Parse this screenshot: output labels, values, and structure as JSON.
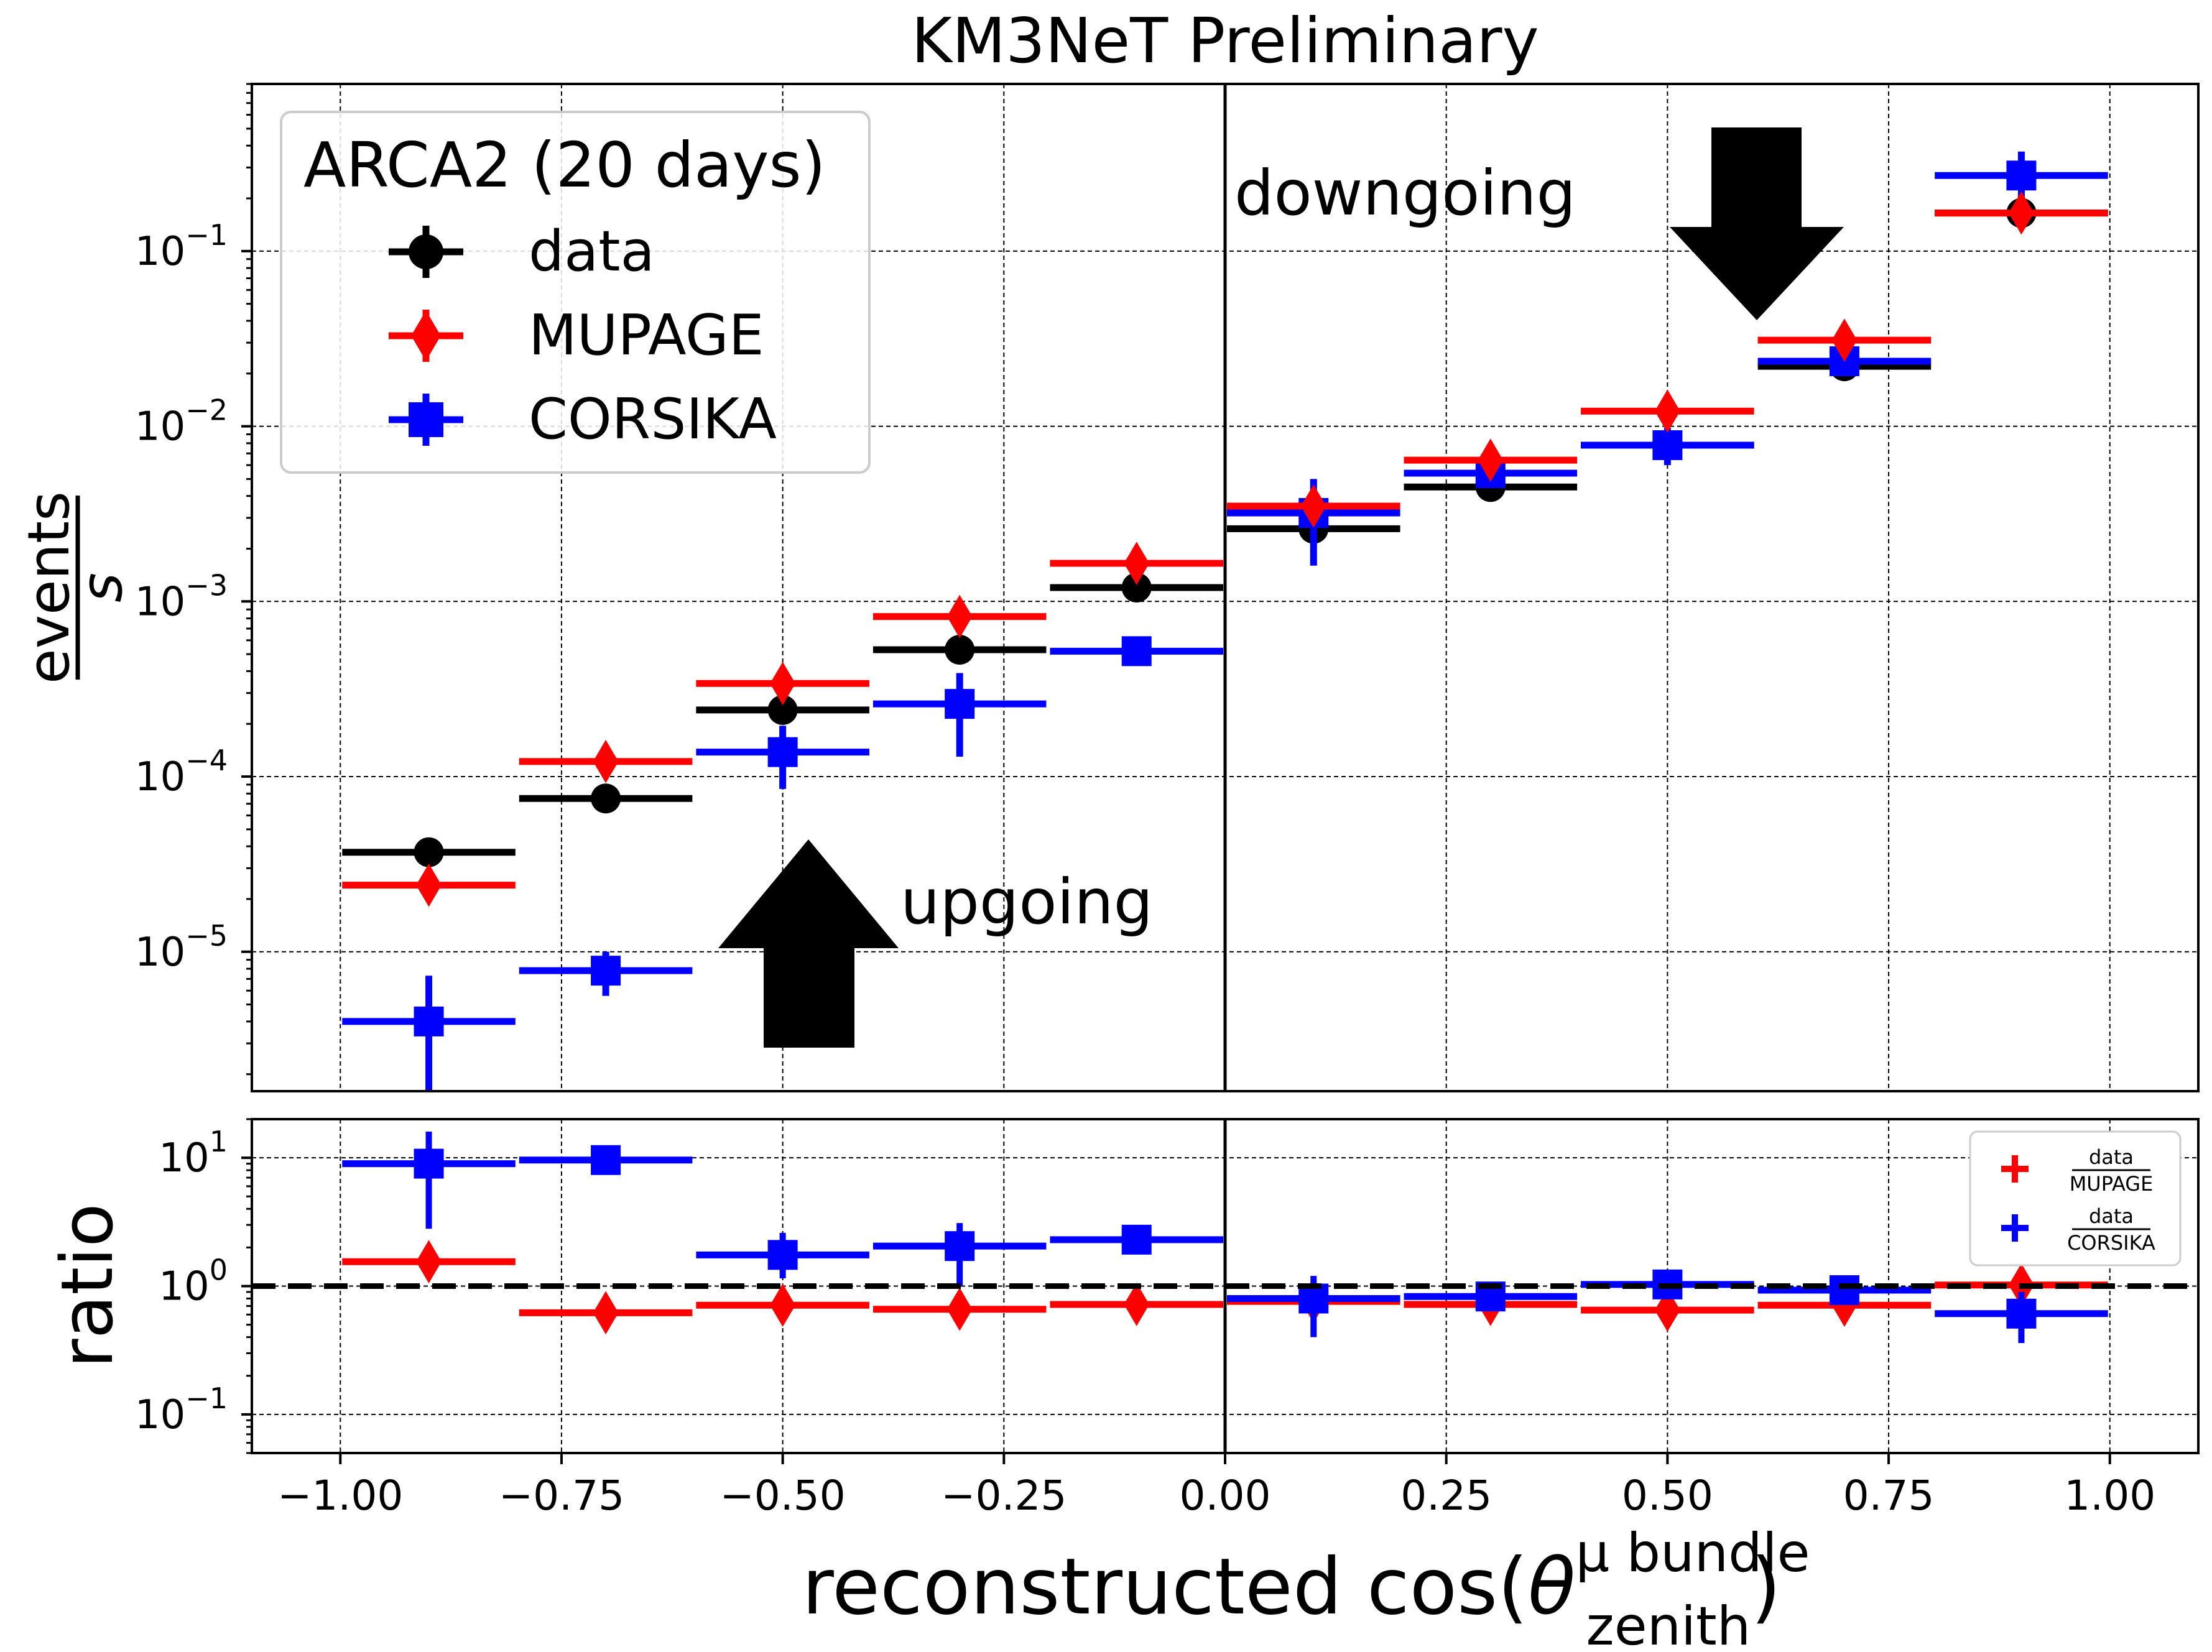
{
  "chart_data": [
    {
      "type": "scatter",
      "panel": "main",
      "title": "KM3NeT Preliminary",
      "xlabel": "reconstructed cos(θ zenith, μ bundle)",
      "ylabel_numerator": "events",
      "ylabel_denominator": "s",
      "xlim": [
        -1.1,
        1.1
      ],
      "ylim": [
        1.6e-06,
        0.9
      ],
      "yscale": "log",
      "grid": true,
      "bin_edges": [
        -1.0,
        -0.8,
        -0.6,
        -0.4,
        -0.2,
        0.0,
        0.2,
        0.4,
        0.6,
        0.8,
        1.0
      ],
      "x": [
        -0.9,
        -0.7,
        -0.5,
        -0.3,
        -0.1,
        0.1,
        0.3,
        0.5,
        0.7,
        0.9
      ],
      "y_ticks": [
        {
          "value": 1e-05,
          "base": "10",
          "exp": "−5"
        },
        {
          "value": 0.0001,
          "base": "10",
          "exp": "−4"
        },
        {
          "value": 0.001,
          "base": "10",
          "exp": "−3"
        },
        {
          "value": 0.01,
          "base": "10",
          "exp": "−2"
        },
        {
          "value": 0.1,
          "base": "10",
          "exp": "−1"
        }
      ],
      "legend": {
        "title": "ARCA2 (20 days)",
        "position": "upper-left",
        "entries": [
          "data",
          "MUPAGE",
          "CORSIKA"
        ]
      },
      "series": [
        {
          "name": "data",
          "color": "#000000",
          "marker": "circle",
          "values": [
            3.7e-05,
            7.5e-05,
            0.00024,
            0.00053,
            0.0012,
            0.0026,
            0.0045,
            0.0078,
            0.022,
            0.165
          ],
          "err_low": [
            3.7e-05,
            7.5e-05,
            0.00024,
            0.00053,
            0.0012,
            0.0026,
            0.0045,
            0.0078,
            0.022,
            0.165
          ],
          "err_high": [
            3.7e-05,
            7.5e-05,
            0.00024,
            0.00053,
            0.0012,
            0.0026,
            0.0045,
            0.0078,
            0.022,
            0.165
          ]
        },
        {
          "name": "MUPAGE",
          "color": "#ff0000",
          "marker": "diamond",
          "values": [
            2.4e-05,
            0.000122,
            0.00034,
            0.00082,
            0.00165,
            0.0035,
            0.0064,
            0.0122,
            0.031,
            0.165
          ],
          "err_low": [
            2.4e-05,
            0.000122,
            0.00034,
            0.00082,
            0.00165,
            0.0035,
            0.0064,
            0.0122,
            0.031,
            0.165
          ],
          "err_high": [
            2.4e-05,
            0.000122,
            0.00034,
            0.00082,
            0.00165,
            0.0035,
            0.0064,
            0.0122,
            0.031,
            0.165
          ]
        },
        {
          "name": "CORSIKA",
          "color": "#0000ff",
          "marker": "square",
          "values": [
            4e-06,
            7.8e-06,
            0.000138,
            0.00026,
            0.00052,
            0.0032,
            0.0054,
            0.0078,
            0.0235,
            0.27
          ],
          "err_low": [
            1.6e-06,
            5.6e-06,
            8.5e-05,
            0.00013,
            0.00044,
            0.0016,
            0.0049,
            0.006,
            0.022,
            0.2
          ],
          "err_high": [
            7.3e-06,
            1e-05,
            0.000195,
            0.00039,
            0.0006,
            0.005,
            0.006,
            0.0098,
            0.025,
            0.37
          ]
        }
      ],
      "annotations": [
        {
          "text": "downgoing",
          "arrow": "down"
        },
        {
          "text": "upgoing",
          "arrow": "up"
        }
      ]
    },
    {
      "type": "scatter",
      "panel": "ratio",
      "ylabel": "ratio",
      "xlim": [
        -1.1,
        1.1
      ],
      "ylim": [
        0.05,
        20
      ],
      "yscale": "log",
      "grid": true,
      "reference_line": 1.0,
      "x_ticks": [
        "−1.00",
        "−0.75",
        "−0.50",
        "−0.25",
        "0.00",
        "0.25",
        "0.50",
        "0.75",
        "1.00"
      ],
      "x_tick_values": [
        -1.0,
        -0.75,
        -0.5,
        -0.25,
        0.0,
        0.25,
        0.5,
        0.75,
        1.0
      ],
      "y_ticks": [
        {
          "value": 0.1,
          "base": "10",
          "exp": "−1"
        },
        {
          "value": 1,
          "base": "10",
          "exp": "0"
        },
        {
          "value": 10,
          "base": "10",
          "exp": "1"
        }
      ],
      "legend": {
        "position": "upper-right",
        "entries": [
          {
            "numerator": "data",
            "denominator": "MUPAGE"
          },
          {
            "numerator": "data",
            "denominator": "CORSIKA"
          }
        ]
      },
      "x": [
        -0.9,
        -0.7,
        -0.5,
        -0.3,
        -0.1,
        0.1,
        0.3,
        0.5,
        0.7,
        0.9
      ],
      "series": [
        {
          "name": "data/MUPAGE",
          "color": "#ff0000",
          "marker": "diamond",
          "values": [
            1.55,
            0.62,
            0.71,
            0.66,
            0.72,
            0.76,
            0.72,
            0.65,
            0.71,
            1.02
          ]
        },
        {
          "name": "data/CORSIKA",
          "color": "#0000ff",
          "marker": "square",
          "values": [
            9.0,
            9.6,
            1.75,
            2.05,
            2.3,
            0.8,
            0.83,
            1.03,
            0.93,
            0.61
          ],
          "err_low": [
            2.8,
            9.6,
            1.15,
            1.0,
            2.1,
            0.4,
            0.72,
            0.9,
            0.8,
            0.36
          ],
          "err_high": [
            16.0,
            9.6,
            2.6,
            3.1,
            2.5,
            1.2,
            0.95,
            1.2,
            1.06,
            0.9
          ]
        }
      ]
    }
  ]
}
